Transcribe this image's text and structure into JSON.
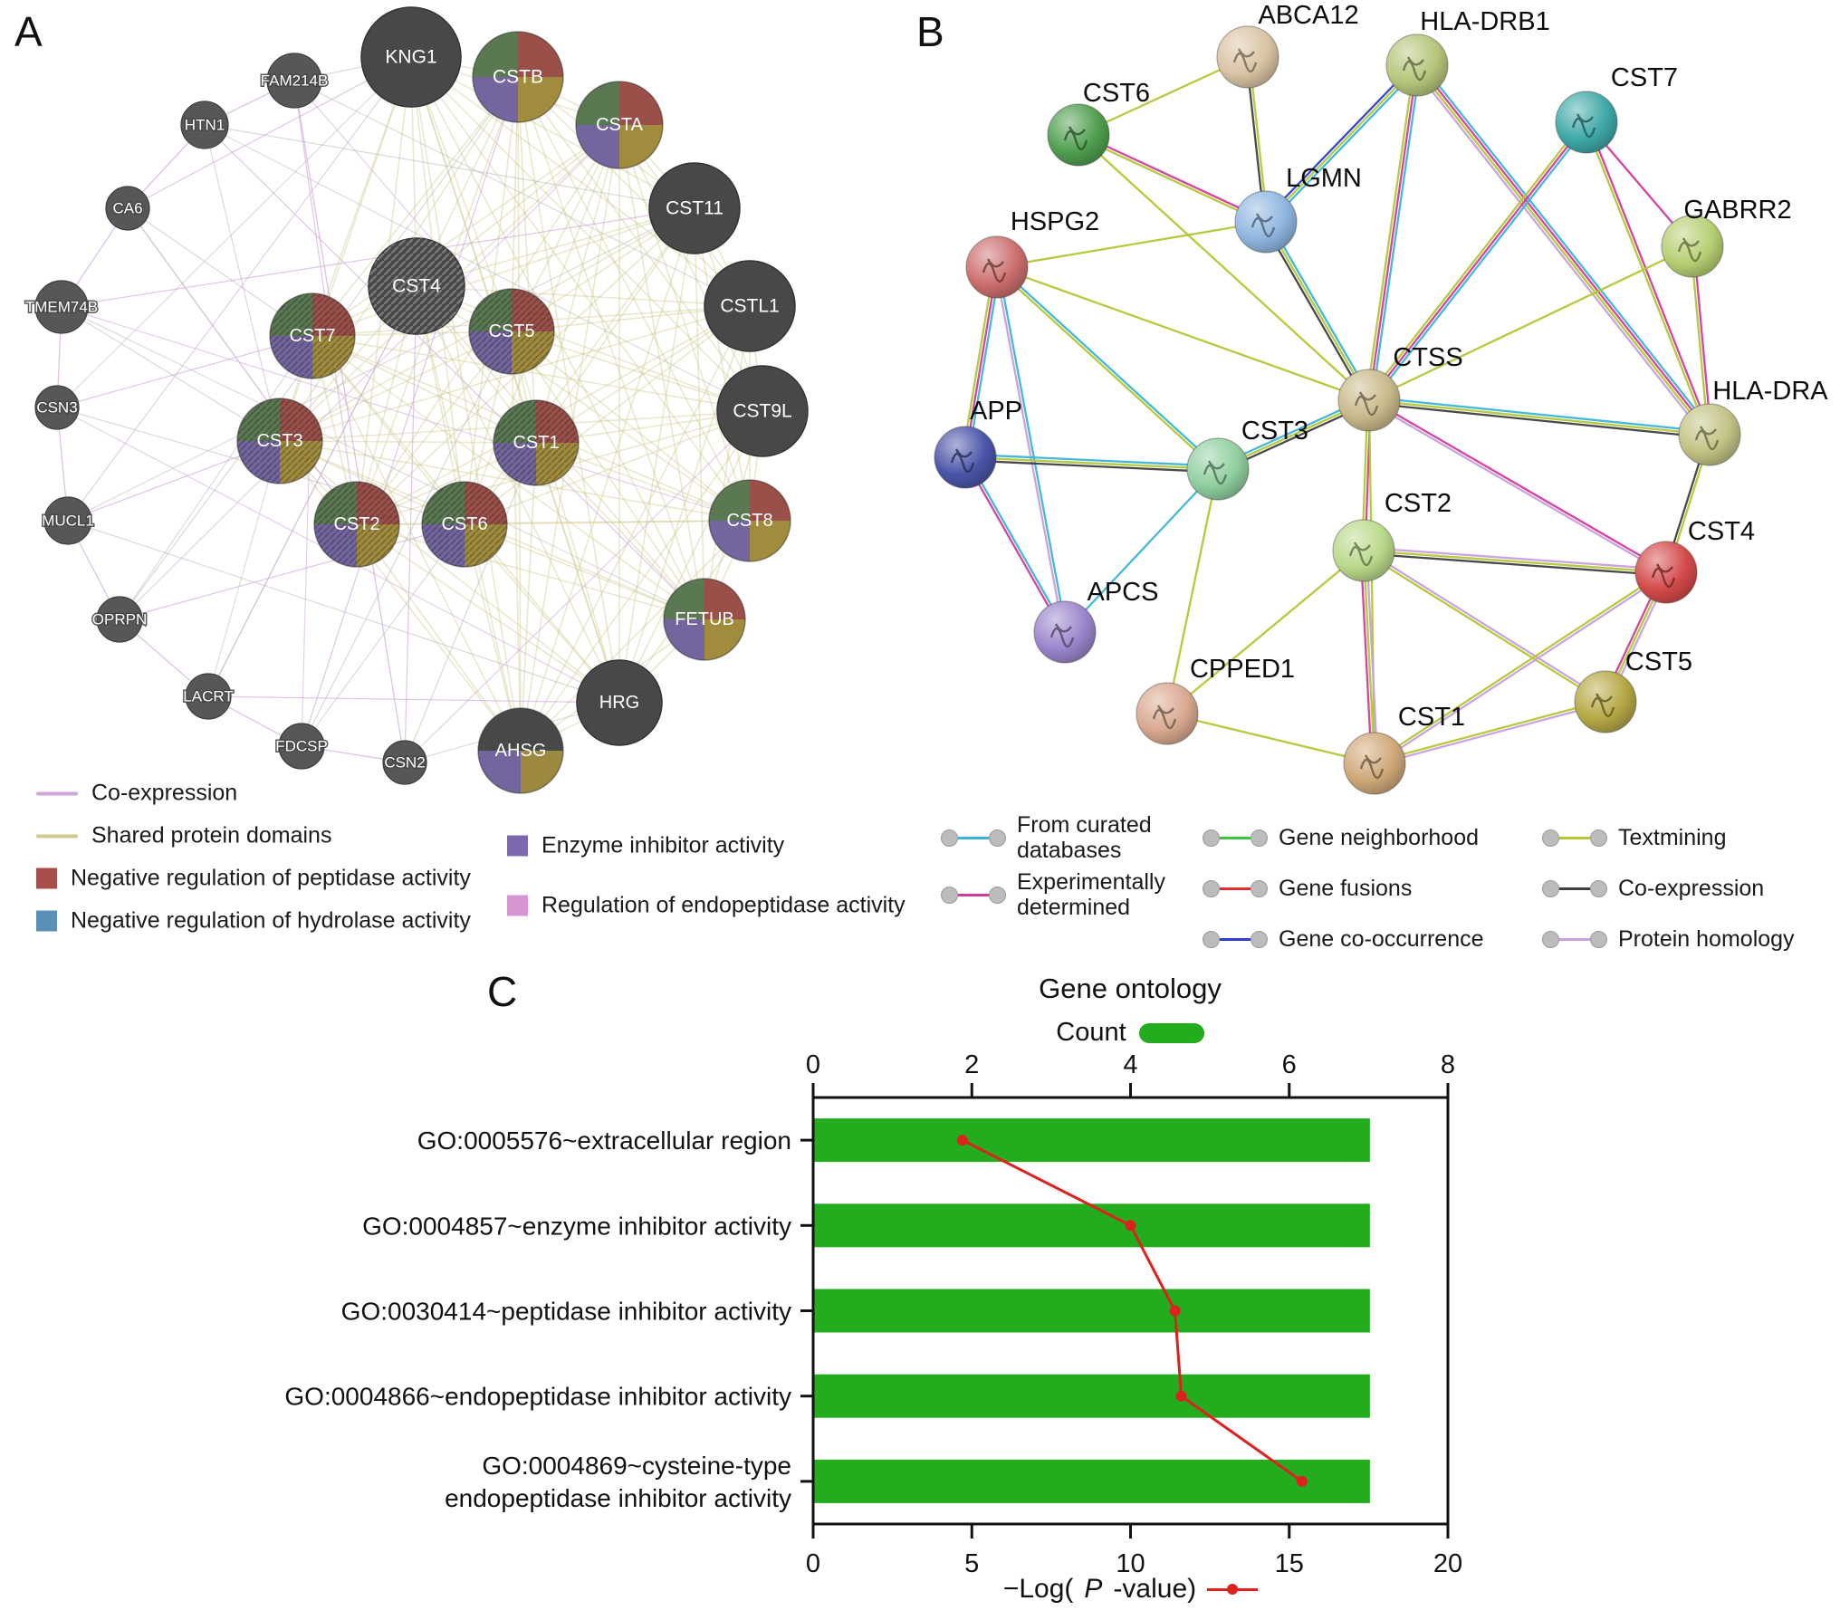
{
  "panelA": {
    "label": "A",
    "nodes": [
      "KNG1",
      "FAM214B",
      "HTN1",
      "CA6",
      "TMEM74B",
      "CSN3",
      "MUCL1",
      "OPRPN",
      "LACRT",
      "FDCSP",
      "CSN2",
      "CSTB",
      "CSTA",
      "CST11",
      "CST4",
      "CSTL1",
      "CST7",
      "CST5",
      "CST9L",
      "CST3",
      "CST1",
      "CST2",
      "CST6",
      "CST8",
      "FETUB",
      "HRG",
      "AHSG"
    ],
    "legend": [
      {
        "type": "line",
        "color": "#cfa6dd",
        "label": "Co-expression"
      },
      {
        "type": "line",
        "color": "#cfcb8f",
        "label": "Shared protein domains"
      },
      {
        "type": "square",
        "color": "#a94f4b",
        "label": "Negative regulation of peptidase activity"
      },
      {
        "type": "square",
        "color": "#5b8fb5",
        "label": "Negative regulation of hydrolase activity"
      },
      {
        "type": "square",
        "color": "#7b68ae",
        "label": "Enzyme inhibitor activity"
      },
      {
        "type": "square",
        "color": "#d795d4",
        "label": "Regulation of endopeptidase activity"
      }
    ]
  },
  "panelB": {
    "label": "B",
    "nodes": [
      "ABCA12",
      "HLA-DRB1",
      "CST7",
      "CST6",
      "LGMN",
      "GABRR2",
      "HSPG2",
      "CTSS",
      "HLA-DRA",
      "APP",
      "CST3",
      "CST2",
      "CST4",
      "APCS",
      "CST5",
      "CPPED1",
      "CST1"
    ],
    "legend": [
      {
        "color": "#3ab5d9",
        "label": "From curated databases",
        "lines": [
          "From curated",
          "databases"
        ]
      },
      {
        "color": "#d43a9a",
        "label": "Experimentally determined",
        "lines": [
          "Experimentally",
          "determined"
        ]
      },
      {
        "color": "#3ec43e",
        "label": "Gene neighborhood"
      },
      {
        "color": "#e03131",
        "label": "Gene fusions"
      },
      {
        "color": "#2d3ccc",
        "label": "Gene co-occurrence"
      },
      {
        "color": "#b2c832",
        "label": "Textmining"
      },
      {
        "color": "#404040",
        "label": "Co-expression"
      },
      {
        "color": "#c9a0dc",
        "label": "Protein homology"
      }
    ]
  },
  "panelC": {
    "label": "C",
    "title": "Gene ontology",
    "count_label": "Count",
    "pvalue": {
      "pre": "−Log(",
      "p": "P",
      "post": "-value)"
    }
  },
  "chart_data": {
    "type": "bar",
    "orientation": "horizontal",
    "title": "Gene ontology",
    "categories": [
      "GO:0005576~extracellular region",
      "GO:0004857~enzyme inhibitor activity",
      "GO:0030414~peptidase inhibitor activity",
      "GO:0004866~endopeptidase inhibitor activity",
      "GO:0004869~cysteine-type endopeptidase inhibitor activity"
    ],
    "categories_wrapped": [
      [
        "GO:0005576~extracellular region"
      ],
      [
        "GO:0004857~enzyme inhibitor activity"
      ],
      [
        "GO:0030414~peptidase inhibitor activity"
      ],
      [
        "GO:0004866~endopeptidase inhibitor activity"
      ],
      [
        "GO:0004869~cysteine-type",
        "endopeptidase inhibitor activity"
      ]
    ],
    "series": [
      {
        "name": "Count",
        "type": "bar",
        "axis": "top",
        "values": [
          7,
          7,
          7,
          7,
          7
        ],
        "color": "#22ac1e",
        "xlim": [
          0,
          8
        ],
        "ticks": [
          0,
          2,
          4,
          6,
          8
        ]
      },
      {
        "name": "−Log(P-value)",
        "type": "line",
        "axis": "bottom",
        "values": [
          4.7,
          10.0,
          11.4,
          11.6,
          15.4
        ],
        "color": "#e0201c",
        "xlim": [
          0,
          20
        ],
        "ticks": [
          0,
          5,
          10,
          15,
          20
        ]
      }
    ],
    "legend_position": "top",
    "grid": false
  }
}
